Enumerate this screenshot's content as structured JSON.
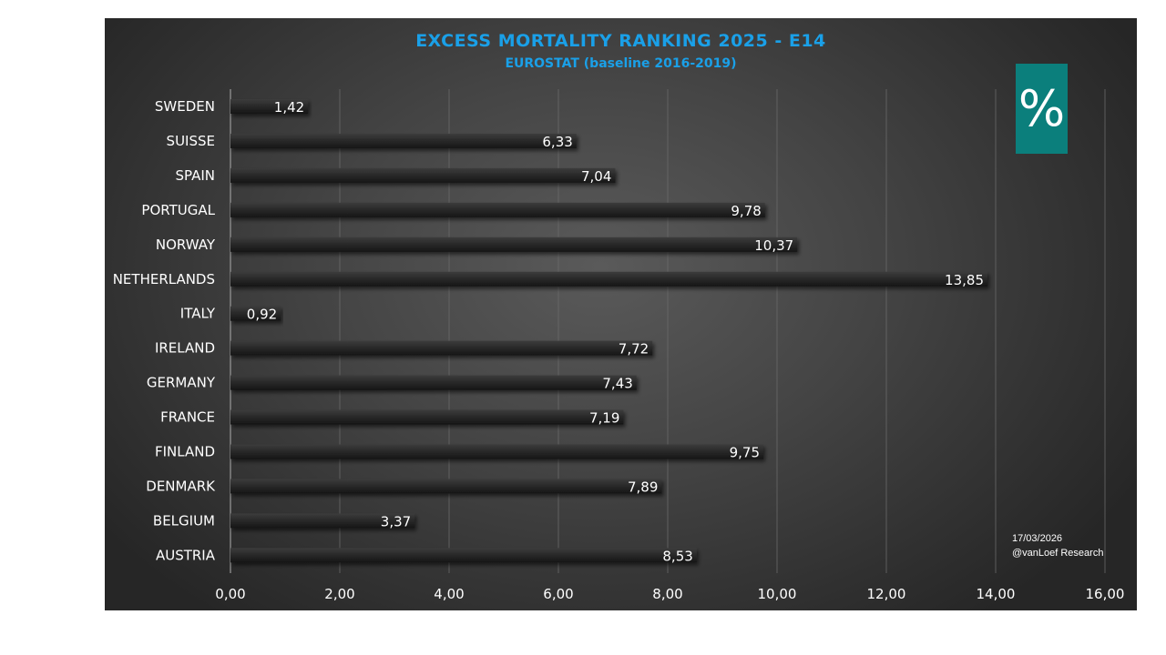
{
  "chart_data": {
    "type": "bar",
    "orientation": "horizontal",
    "title": "EXCESS MORTALITY RANKING 2025 - E14",
    "subtitle": "EUROSTAT (baseline 2016-2019)",
    "categories": [
      "SWEDEN",
      "SUISSE",
      "SPAIN",
      "PORTUGAL",
      "NORWAY",
      "NETHERLANDS",
      "ITALY",
      "IRELAND",
      "GERMANY",
      "FRANCE",
      "FINLAND",
      "DENMARK",
      "BELGIUM",
      "AUSTRIA"
    ],
    "values": [
      1.42,
      6.33,
      7.04,
      9.78,
      10.37,
      13.85,
      0.92,
      7.72,
      7.43,
      7.19,
      9.75,
      7.89,
      3.37,
      8.53
    ],
    "value_labels": [
      "1,42",
      "6,33",
      "7,04",
      "9,78",
      "10,37",
      "13,85",
      "0,92",
      "7,72",
      "7,43",
      "7,19",
      "9,75",
      "7,89",
      "3,37",
      "8,53"
    ],
    "xlim": [
      0,
      16
    ],
    "xticks": [
      0,
      2,
      4,
      6,
      8,
      10,
      12,
      14,
      16
    ],
    "xtick_labels": [
      "0,00",
      "2,00",
      "4,00",
      "6,00",
      "8,00",
      "10,00",
      "12,00",
      "14,00",
      "16,00"
    ],
    "xlabel": "",
    "ylabel": "",
    "grid": "vertical",
    "legend": "none"
  },
  "badge": {
    "symbol": "%",
    "color": "#0b7f7c"
  },
  "annotations": {
    "date": "17/03/2026",
    "credit": "@vanLoef Research"
  },
  "colors": {
    "title": "#1aa0e8",
    "bar": "#2a2a2a",
    "text": "#ffffff",
    "grid": "#6a6a6a"
  }
}
